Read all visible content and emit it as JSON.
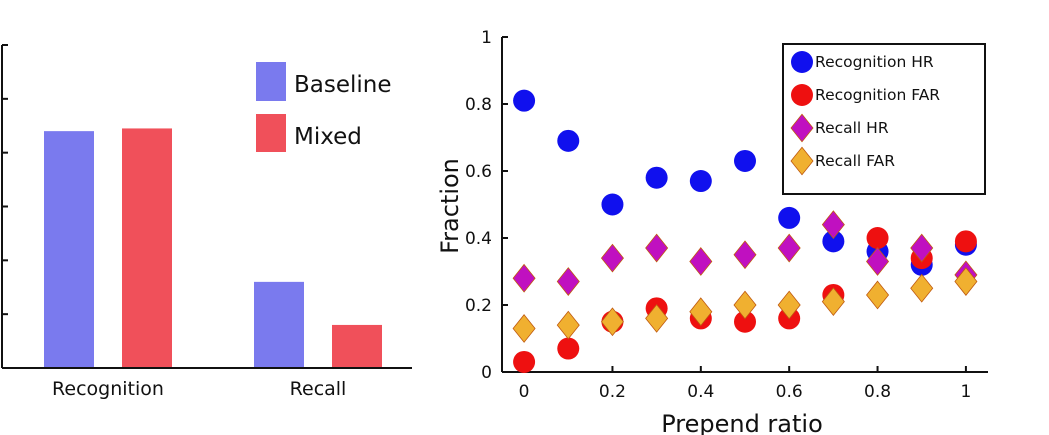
{
  "chart_data": [
    {
      "type": "bar",
      "categories": [
        "Recognition",
        "Recall"
      ],
      "series": [
        {
          "name": "Baseline",
          "values": [
            0.44,
            0.16
          ],
          "color": "#7a7aee"
        },
        {
          "name": "Mixed",
          "values": [
            0.445,
            0.08
          ],
          "color": "#f0505a"
        }
      ],
      "xlabel": "",
      "ylabel": "",
      "y_tick_labels_visible": false,
      "ylim": [
        0,
        0.6
      ],
      "legend_position": "top-right",
      "grid": false
    },
    {
      "type": "scatter",
      "xlabel": "Prepend ratio",
      "ylabel": "Fraction",
      "xlim": [
        -0.05,
        1.05
      ],
      "ylim": [
        0,
        1
      ],
      "x_ticks": [
        "0",
        "0.2",
        "0.4",
        "0.6",
        "0.8",
        "1"
      ],
      "y_ticks": [
        "0",
        "0.2",
        "0.4",
        "0.6",
        "0.8",
        "1"
      ],
      "legend_position": "top-right",
      "grid": false,
      "series": [
        {
          "name": "Recognition HR",
          "marker": "circle",
          "color": "#1010ee",
          "x": [
            0,
            0.1,
            0.2,
            0.3,
            0.4,
            0.5,
            0.6,
            0.7,
            0.8,
            0.9,
            1.0
          ],
          "y": [
            0.81,
            0.69,
            0.5,
            0.58,
            0.57,
            0.63,
            0.46,
            0.39,
            0.36,
            0.32,
            0.38
          ]
        },
        {
          "name": "Recognition FAR",
          "marker": "circle",
          "color": "#ee1010",
          "x": [
            0,
            0.1,
            0.2,
            0.3,
            0.4,
            0.5,
            0.6,
            0.7,
            0.8,
            0.9,
            1.0
          ],
          "y": [
            0.03,
            0.07,
            0.15,
            0.19,
            0.16,
            0.15,
            0.16,
            0.23,
            0.4,
            0.34,
            0.39
          ]
        },
        {
          "name": "Recall HR",
          "marker": "diamond",
          "color": "#c010c0",
          "x": [
            0,
            0.1,
            0.2,
            0.3,
            0.4,
            0.5,
            0.6,
            0.7,
            0.8,
            0.9,
            1.0
          ],
          "y": [
            0.28,
            0.27,
            0.34,
            0.37,
            0.33,
            0.35,
            0.37,
            0.44,
            0.33,
            0.37,
            0.29
          ]
        },
        {
          "name": "Recall FAR",
          "marker": "diamond",
          "color": "#f0b030",
          "x": [
            0,
            0.1,
            0.2,
            0.3,
            0.4,
            0.5,
            0.6,
            0.7,
            0.8,
            0.9,
            1.0
          ],
          "y": [
            0.13,
            0.14,
            0.15,
            0.16,
            0.18,
            0.2,
            0.2,
            0.21,
            0.23,
            0.25,
            0.27
          ]
        }
      ]
    }
  ]
}
